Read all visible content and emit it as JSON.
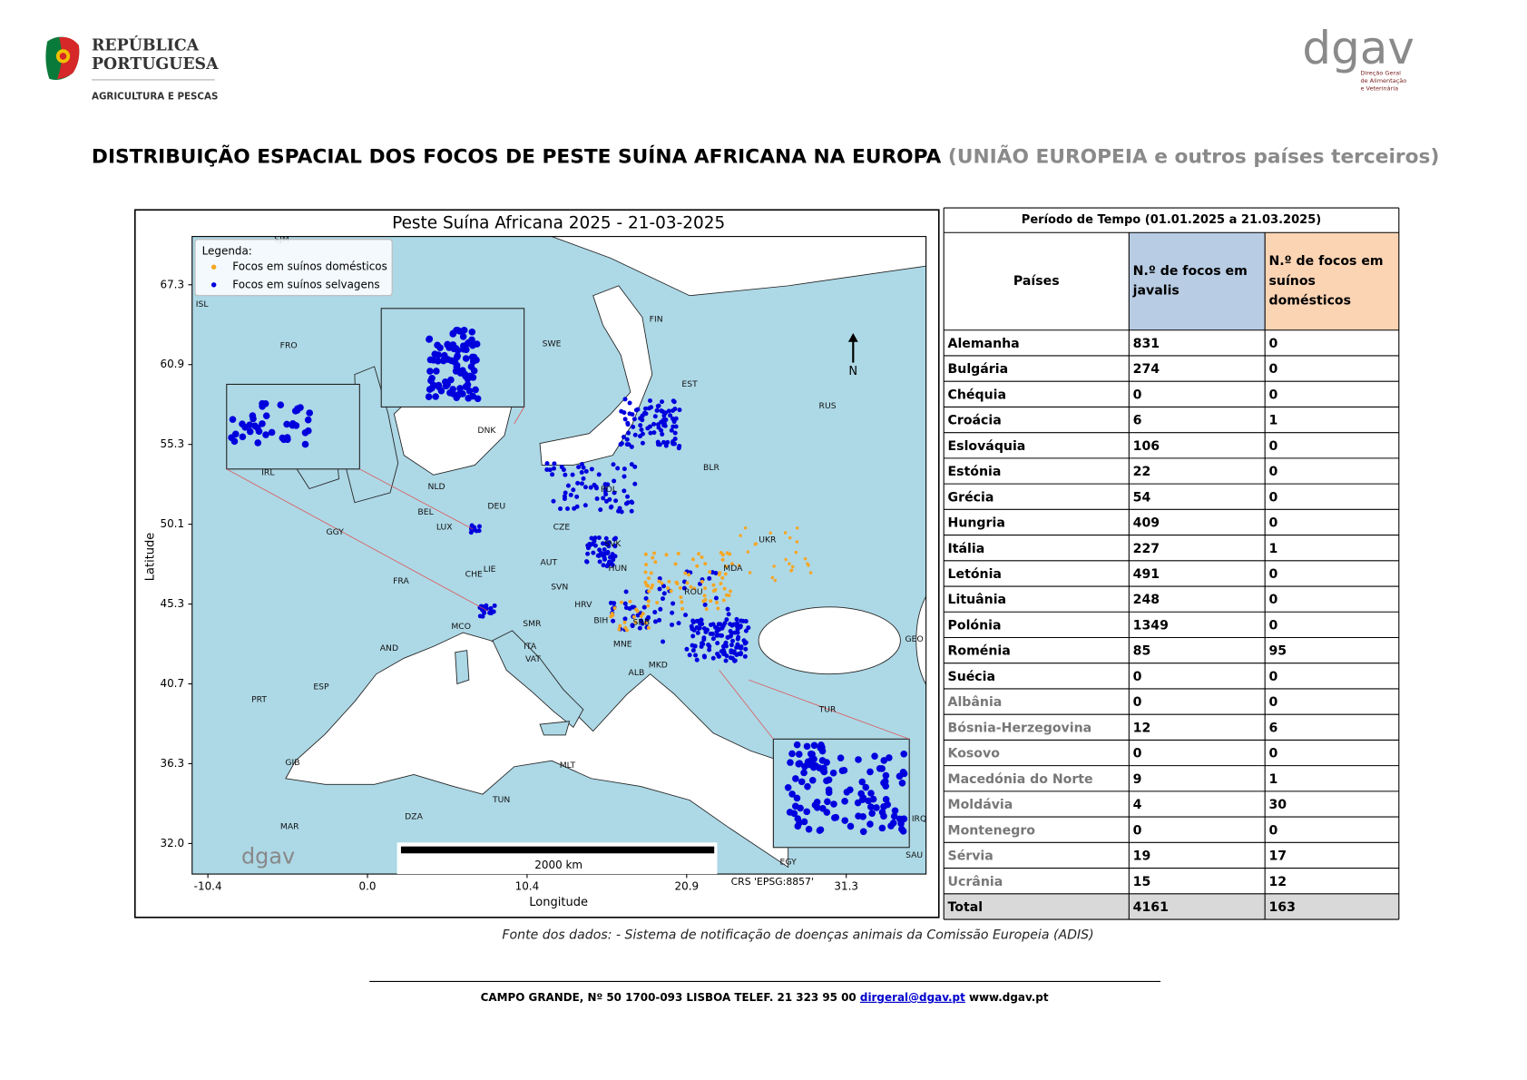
{
  "header": {
    "org_line1": "REPÚBLICA",
    "org_line2": "PORTUGUESA",
    "org_subtitle": "AGRICULTURA E PESCAS",
    "logo_text": "dgav",
    "logo_caption": [
      "Direção Geral",
      "de Alimentação",
      "e Veterinária"
    ]
  },
  "title": {
    "main": "DISTRIBUIÇÃO ESPACIAL DOS FOCOS DE PESTE SUÍNA AFRICANA NA EUROPA",
    "suffix": "(UNIÃO EUROPEIA e outros países terceiros)"
  },
  "map": {
    "title": "Peste Suína Africana 2025 - 21-03-2025",
    "legend_title": "Legenda:",
    "legend": [
      "Focos em suínos domésticos",
      "Focos em suínos selvagens"
    ],
    "ylabel": "Latitude",
    "xlabel": "Longitude",
    "yticks": [
      "67.3",
      "60.9",
      "55.3",
      "50.1",
      "45.3",
      "40.7",
      "36.3",
      "32.0"
    ],
    "xticks": [
      "-10.4",
      "0.0",
      "10.4",
      "20.9",
      "31.3"
    ],
    "north": "N",
    "scale_label": "2000 km",
    "crs": "CRS 'EPSG:8857'",
    "watermark": "dgav",
    "country_labels": [
      "SJM",
      "ISL",
      "FRO",
      "IRL",
      "NLD",
      "BEL",
      "LUX",
      "DEU",
      "FRA",
      "CHE",
      "LIE",
      "AUT",
      "CZE",
      "POL",
      "SVK",
      "HUN",
      "SVN",
      "HRV",
      "BIH",
      "SRB",
      "MNE",
      "ALB",
      "MKD",
      "ROU",
      "MDA",
      "UKR",
      "BLR",
      "EST",
      "RUS",
      "FIN",
      "SWE",
      "DNK",
      "ESP",
      "PRT",
      "AND",
      "MCO",
      "SMR",
      "ITA",
      "VAT",
      "GIB",
      "MAR",
      "DZA",
      "TUN",
      "MLT",
      "TUR",
      "GEO",
      "EGY",
      "IRQ",
      "SAU",
      "GGY"
    ]
  },
  "table": {
    "period": "Período de Tempo (01.01.2025 a 21.03.2025)",
    "columns": [
      "Países",
      "N.º de focos em javalis",
      "N.º de  focos em suínos domésticos"
    ],
    "rows": [
      [
        "Alemanha",
        831,
        0
      ],
      [
        "Bulgária",
        274,
        0
      ],
      [
        "Chéquia",
        0,
        0
      ],
      [
        "Croácia",
        6,
        1
      ],
      [
        "Eslováquia",
        106,
        0
      ],
      [
        "Estónia",
        22,
        0
      ],
      [
        "Grécia",
        54,
        0
      ],
      [
        "Hungria",
        409,
        0
      ],
      [
        "Itália",
        227,
        1
      ],
      [
        "Letónia",
        491,
        0
      ],
      [
        "Lituânia",
        248,
        0
      ],
      [
        "Polónia",
        1349,
        0
      ],
      [
        "Roménia",
        85,
        95
      ],
      [
        "Suécia",
        0,
        0
      ],
      [
        "Albânia",
        0,
        0
      ],
      [
        "Bósnia-Herzegovina",
        12,
        6
      ],
      [
        "Kosovo",
        0,
        0
      ],
      [
        "Macedónia do Norte",
        9,
        1
      ],
      [
        "Moldávia",
        4,
        30
      ],
      [
        "Montenegro",
        0,
        0
      ],
      [
        "Sérvia",
        19,
        17
      ],
      [
        "Ucrânia",
        15,
        12
      ]
    ],
    "total": [
      "Total",
      4161,
      163
    ]
  },
  "source": "Fonte dos dados: - Sistema de notificação de doenças animais da Comissão Europeia (ADIS)",
  "footer": {
    "address": "CAMPO GRANDE, Nº 50 1700-093 LISBOA TELEF. 21 323 95 00",
    "email": "dirgeral@dgav.pt",
    "website": "www.dgav.pt"
  }
}
